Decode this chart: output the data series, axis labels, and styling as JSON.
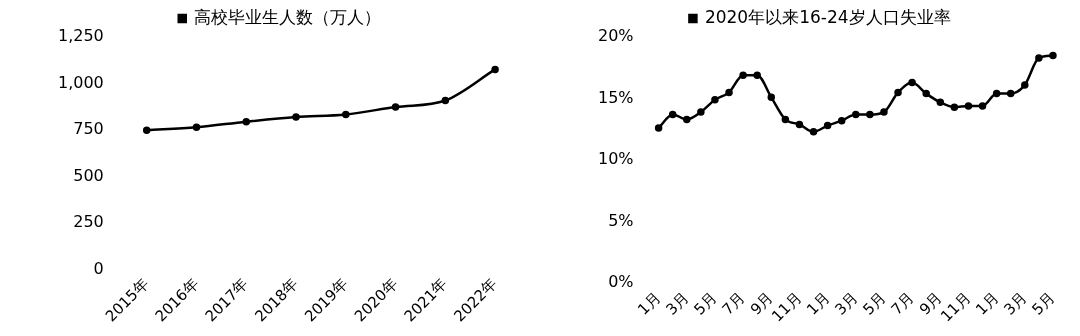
{
  "chart_data": [
    {
      "type": "line",
      "categories": [
        "2015年",
        "2016年",
        "2017年",
        "2018年",
        "2019年",
        "2020年",
        "2021年",
        "2022年"
      ],
      "series": [
        {
          "name": "高校毕业生人数（万人）",
          "color": "#000000",
          "values": [
            749,
            765,
            795,
            820,
            834,
            874,
            909,
            1076
          ]
        }
      ],
      "ylim": [
        0,
        1250
      ],
      "yticks": [
        0,
        250,
        500,
        750,
        {
          "value": 1000,
          "label": "1,000"
        },
        {
          "value": 1250,
          "label": "1,250"
        }
      ],
      "legend": "top",
      "marker": "circle"
    },
    {
      "type": "line",
      "categories": [
        "1月",
        null,
        "3月",
        null,
        "5月",
        null,
        "7月",
        null,
        "9月",
        null,
        "11月",
        null,
        "1月",
        null,
        "3月",
        null,
        "5月",
        null,
        "7月",
        null,
        "9月",
        null,
        "11月",
        null,
        "1月",
        null,
        "3月",
        null,
        "5月"
      ],
      "series": [
        {
          "name": "2020年以来16-24岁人口失业率",
          "color": "#000000",
          "values": [
            12.6,
            13.7,
            13.3,
            13.9,
            14.9,
            15.5,
            16.9,
            16.9,
            15.1,
            13.3,
            12.9,
            12.3,
            12.8,
            13.2,
            13.7,
            13.7,
            13.9,
            15.5,
            16.3,
            15.4,
            14.7,
            14.3,
            14.4,
            14.4,
            15.4,
            15.4,
            16.1,
            18.3,
            18.5
          ]
        }
      ],
      "ylim": [
        0,
        20
      ],
      "yticks": [
        {
          "value": 0,
          "label": "0%"
        },
        {
          "value": 5,
          "label": "5%"
        },
        {
          "value": 10,
          "label": "10%"
        },
        {
          "value": 15,
          "label": "15%"
        },
        {
          "value": 20,
          "label": "20%"
        }
      ],
      "legend": "top",
      "marker": "circle"
    }
  ]
}
